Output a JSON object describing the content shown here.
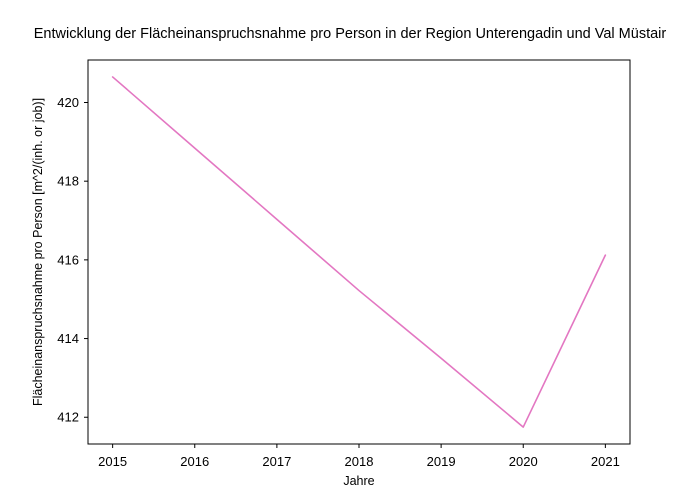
{
  "chart_data": {
    "type": "line",
    "title": "Entwicklung der Flächeinanspruchsnahme pro Person in der Region Unterengadin und Val Müstair",
    "xlabel": "Jahre",
    "ylabel": "Flächeinanspruchsnahme pro Person [m^2/(inh. or job)]",
    "x": [
      2015,
      2016,
      2017,
      2018,
      2019,
      2020,
      2021
    ],
    "series": [
      {
        "values": [
          420.65,
          418.84,
          417.03,
          415.22,
          413.5,
          411.75,
          416.12
        ],
        "color": "#e377c2"
      }
    ],
    "xlim": [
      2014.7,
      2021.3
    ],
    "ylim": [
      411.32,
      421.08
    ],
    "xticks": [
      2015,
      2016,
      2017,
      2018,
      2019,
      2020,
      2021
    ],
    "yticks": [
      412,
      414,
      416,
      418,
      420
    ],
    "grid": false,
    "legend": "none"
  }
}
